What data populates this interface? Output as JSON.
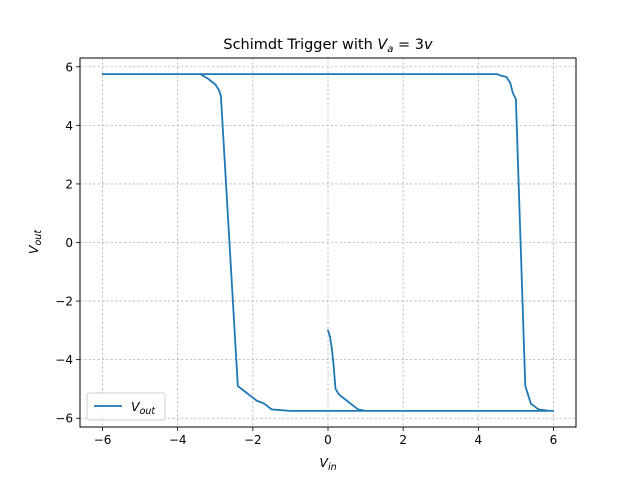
{
  "chart_data": {
    "type": "line",
    "title": {
      "text": "Schimdt Trigger with ",
      "math_var": "V",
      "math_sub": "a",
      "math_rest": " = 3",
      "math_unit": "v"
    },
    "xlabel": {
      "var": "V",
      "sub": "in"
    },
    "ylabel": {
      "var": "V",
      "sub": "out"
    },
    "xlim": [
      -6.6,
      6.6
    ],
    "ylim": [
      -6.3,
      6.3
    ],
    "xticks": [
      -6,
      -4,
      -2,
      0,
      2,
      4,
      6
    ],
    "yticks": [
      -6,
      -4,
      -2,
      0,
      2,
      4,
      6
    ],
    "xtick_labels": [
      "−6",
      "−4",
      "−2",
      "0",
      "2",
      "4",
      "6"
    ],
    "ytick_labels": [
      "−6",
      "−4",
      "−2",
      "0",
      "2",
      "4",
      "6"
    ],
    "grid": true,
    "legend_position": "lower-left",
    "series": [
      {
        "name": {
          "var": "V",
          "sub": "out"
        },
        "color": "#1f77b4",
        "x": [
          0.0,
          0.05,
          0.1,
          0.15,
          0.2,
          0.3,
          0.5,
          0.8,
          1.0,
          2.0,
          3.0,
          4.0,
          5.0,
          5.6,
          6.0,
          5.9,
          5.6,
          5.4,
          5.3,
          5.25,
          5.0,
          4.92,
          4.88,
          4.85,
          4.8,
          4.75,
          4.6,
          4.5,
          4.0,
          2.0,
          0.0,
          -2.0,
          -4.0,
          -6.0,
          -4.0,
          -3.5,
          -3.4,
          -3.2,
          -3.0,
          -2.9,
          -2.85,
          -2.4,
          -2.2,
          -2.1,
          -2.0,
          -1.9,
          -1.7,
          -1.5,
          -1.0,
          0.0,
          2.0,
          4.0,
          6.0
        ],
        "y": [
          -3.0,
          -3.2,
          -3.6,
          -4.2,
          -5.0,
          -5.2,
          -5.4,
          -5.7,
          -5.75,
          -5.75,
          -5.75,
          -5.75,
          -5.75,
          -5.75,
          -5.75,
          -5.75,
          -5.7,
          -5.5,
          -5.1,
          -4.9,
          4.9,
          5.1,
          5.3,
          5.45,
          5.55,
          5.65,
          5.7,
          5.75,
          5.75,
          5.75,
          5.75,
          5.75,
          5.75,
          5.75,
          5.75,
          5.75,
          5.75,
          5.6,
          5.4,
          5.2,
          5.0,
          -4.9,
          -5.1,
          -5.2,
          -5.3,
          -5.4,
          -5.5,
          -5.7,
          -5.75,
          -5.75,
          -5.75,
          -5.75,
          -5.75
        ]
      }
    ]
  }
}
